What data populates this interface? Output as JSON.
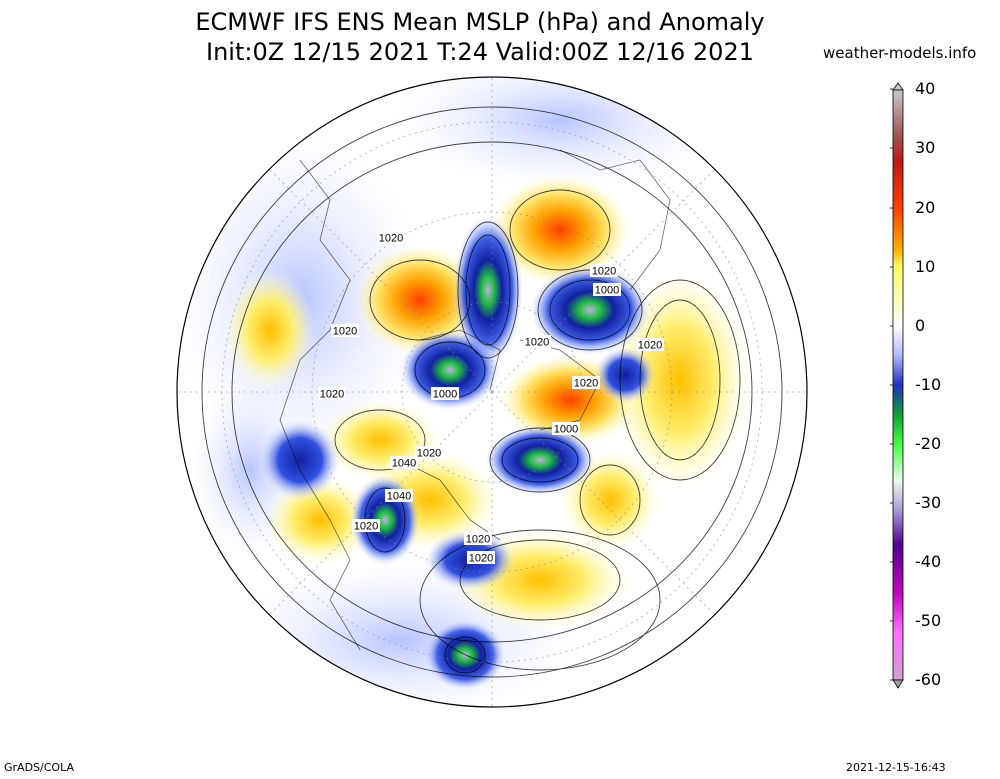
{
  "header": {
    "title_line1": "ECMWF IFS ENS Mean MSLP (hPa) and Anomaly",
    "title_line2": "Init:0Z 12/15 2021  T:24 Valid:00Z 12/16 2021",
    "site": "weather-models.info"
  },
  "footer": {
    "left": "GrADS/COLA",
    "right": "2021-12-15-16:43"
  },
  "colorbar": {
    "labels": [
      "40",
      "30",
      "20",
      "10",
      "0",
      "-10",
      "-20",
      "-30",
      "-40",
      "-50",
      "-60"
    ],
    "colors": [
      "#b4b4b4",
      "#a06060",
      "#c02020",
      "#ff5000",
      "#ffb400",
      "#ffff80",
      "#ffffff",
      "#c0c8ff",
      "#2030c0",
      "#10b030",
      "#40ff40",
      "#e0ffe0",
      "#c0b0e0",
      "#500090",
      "#c000c0",
      "#ff60ff",
      "#a0a0a0"
    ]
  },
  "map": {
    "projection": "north-polar-stereographic",
    "isobar_labels": [
      "1020",
      "1020",
      "1020",
      "1020",
      "1000",
      "1000",
      "1020",
      "1000",
      "1020",
      "1020",
      "1040",
      "1040",
      "1020",
      "1020",
      "1020",
      "1020"
    ]
  }
}
